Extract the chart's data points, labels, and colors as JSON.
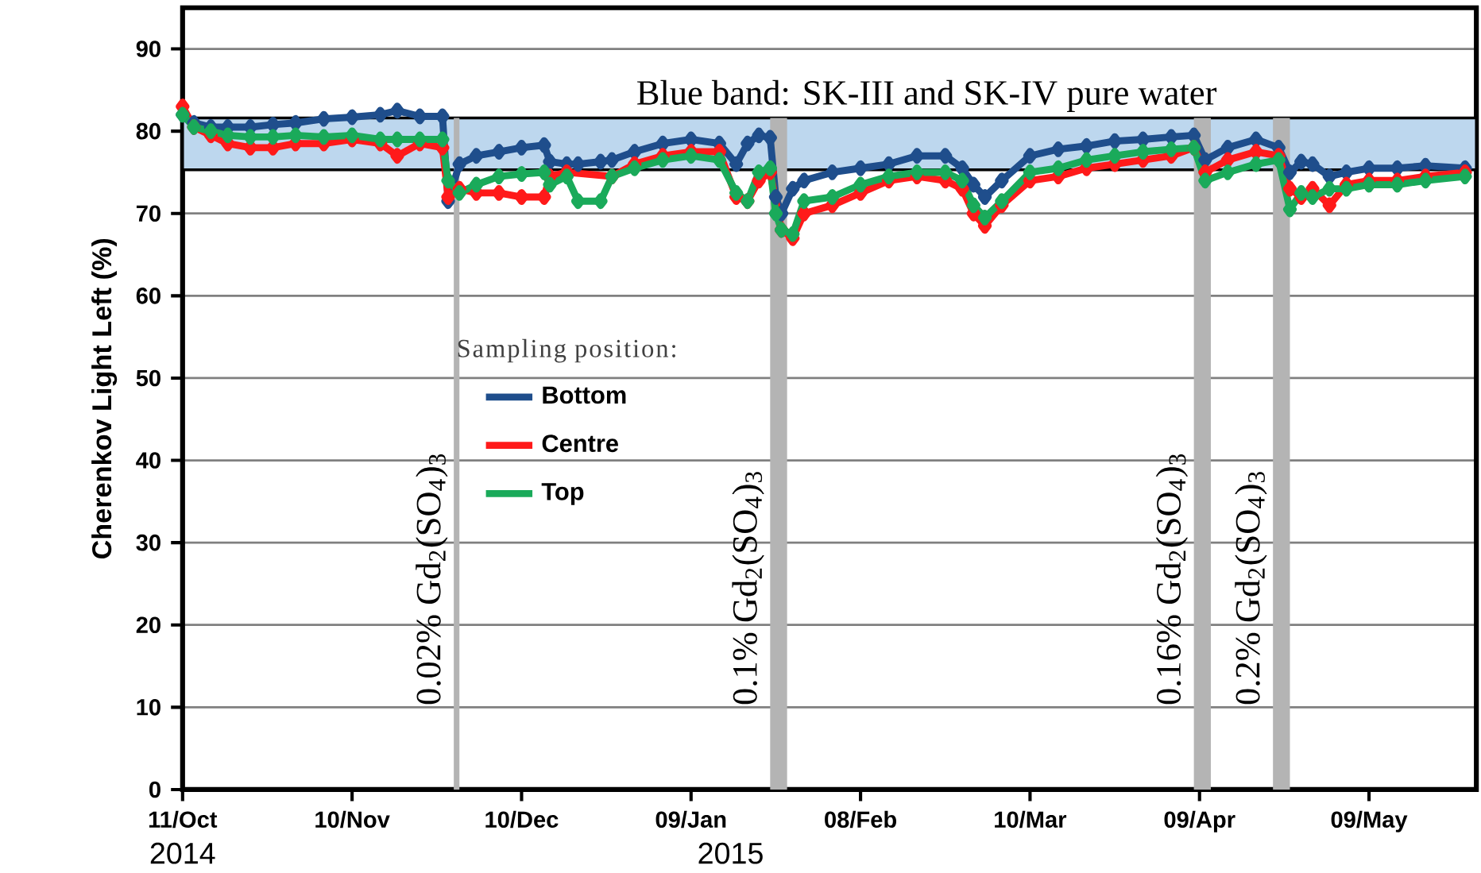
{
  "chart_data": {
    "type": "line",
    "ylabel": "Cherenkov Light Left (%)",
    "legend_title": "Sampling position:",
    "xlim": [
      "2014-10-11",
      "2015-05-28"
    ],
    "ylim": [
      0,
      95
    ],
    "xticks": [
      {
        "value": "2014-10-11",
        "label": "11/Oct"
      },
      {
        "value": "2014-11-10",
        "label": "10/Nov"
      },
      {
        "value": "2014-12-10",
        "label": "10/Dec"
      },
      {
        "value": "2015-01-09",
        "label": "09/Jan"
      },
      {
        "value": "2015-02-08",
        "label": "08/Feb"
      },
      {
        "value": "2015-03-10",
        "label": "10/Mar"
      },
      {
        "value": "2015-04-09",
        "label": "09/Apr"
      },
      {
        "value": "2015-05-09",
        "label": "09/May"
      }
    ],
    "yticks": [
      0,
      10,
      20,
      30,
      40,
      50,
      60,
      70,
      80,
      90
    ],
    "grid": "y",
    "legend": "center",
    "marker": "diamond",
    "line_style": "solid",
    "annotations": [
      "2014",
      "2015"
    ],
    "bands": [
      {
        "axis": "y",
        "from": 75.3,
        "to": 81.6,
        "label": "Blue band: SK-III and SK-IV pure water",
        "color": "#bdd7ee"
      },
      {
        "axis": "x",
        "from": "2014-11-28",
        "to": "2014-11-29",
        "label": "0.02% Gd$_{2}$(SO$_{4}$)$_{3}$",
        "color": "#b4b4b4"
      },
      {
        "axis": "x",
        "from": "2015-01-23",
        "to": "2015-01-26",
        "label": "0.1% Gd$_{2}$(SO$_{4}$)$_{3}$",
        "color": "#b4b4b4"
      },
      {
        "axis": "x",
        "from": "2015-04-08",
        "to": "2015-04-11",
        "label": "0.16% Gd$_{2}$(SO$_{4}$)$_{3}$",
        "color": "#b4b4b4"
      },
      {
        "axis": "x",
        "from": "2015-04-22",
        "to": "2015-04-25",
        "label": "0.2% Gd$_{2}$(SO$_{4}$)$_{3}$",
        "color": "#b4b4b4"
      }
    ],
    "x": [
      "2014-10-11",
      "2014-10-13",
      "2014-10-16",
      "2014-10-19",
      "2014-10-23",
      "2014-10-27",
      "2014-10-31",
      "2014-11-05",
      "2014-11-10",
      "2014-11-15",
      "2014-11-18",
      "2014-11-22",
      "2014-11-26",
      "2014-11-27",
      "2014-11-29",
      "2014-12-02",
      "2014-12-06",
      "2014-12-10",
      "2014-12-14",
      "2014-12-15",
      "2014-12-18",
      "2014-12-20",
      "2014-12-24",
      "2014-12-26",
      "2014-12-30",
      "2015-01-04",
      "2015-01-09",
      "2015-01-14",
      "2015-01-17",
      "2015-01-19",
      "2015-01-21",
      "2015-01-23",
      "2015-01-24",
      "2015-01-25",
      "2015-01-27",
      "2015-01-29",
      "2015-02-03",
      "2015-02-08",
      "2015-02-13",
      "2015-02-18",
      "2015-02-23",
      "2015-02-26",
      "2015-02-28",
      "2015-03-02",
      "2015-03-05",
      "2015-03-10",
      "2015-03-15",
      "2015-03-20",
      "2015-03-25",
      "2015-03-30",
      "2015-04-04",
      "2015-04-08",
      "2015-04-10",
      "2015-04-14",
      "2015-04-19",
      "2015-04-23",
      "2015-04-25",
      "2015-04-27",
      "2015-04-29",
      "2015-05-02",
      "2015-05-05",
      "2015-05-09",
      "2015-05-14",
      "2015-05-19",
      "2015-05-26"
    ],
    "series": [
      {
        "name": "Bottom",
        "color": "#1f4e8c",
        "values": [
          82,
          81,
          80.5,
          80.5,
          80.5,
          80.8,
          81,
          81.5,
          81.7,
          82,
          82.5,
          81.8,
          81.8,
          71.5,
          76,
          77,
          77.5,
          78,
          78.3,
          76.3,
          76,
          76,
          76.3,
          76.5,
          77.5,
          78.5,
          79,
          78.5,
          76,
          78.5,
          79.5,
          79.2,
          72,
          70,
          73,
          74,
          75,
          75.5,
          76,
          77,
          77,
          75.5,
          73.5,
          72,
          74,
          77,
          77.8,
          78.2,
          78.8,
          79,
          79.3,
          79.5,
          76.5,
          78,
          79,
          78,
          75,
          76.3,
          76,
          74.5,
          75,
          75.5,
          75.5,
          75.8,
          75.5
        ]
      },
      {
        "name": "Centre",
        "color": "#ff1a1a",
        "values": [
          83,
          80.5,
          79.5,
          78.5,
          78,
          78,
          78.5,
          78.5,
          79,
          78.5,
          77,
          78.5,
          78,
          72,
          73,
          72.5,
          72.5,
          72,
          72,
          74.5,
          75,
          null,
          null,
          74.5,
          76,
          77,
          77.5,
          77.5,
          72,
          71.5,
          74,
          75,
          null,
          68,
          67,
          70,
          71,
          72.5,
          74,
          74.5,
          74,
          73,
          70,
          68.5,
          71,
          74,
          74.5,
          75.5,
          76,
          76.5,
          77,
          78,
          75,
          76.5,
          77.5,
          77,
          73,
          72,
          73,
          71,
          73.5,
          74,
          74,
          74.5,
          75
        ]
      },
      {
        "name": "Top",
        "color": "#1aaa5a",
        "values": [
          82,
          80.5,
          80,
          79.5,
          79.3,
          79.3,
          79.5,
          79.3,
          79.5,
          79,
          79,
          79,
          79,
          74,
          72.5,
          73.5,
          74.5,
          74.8,
          75,
          73.5,
          74.5,
          71.5,
          71.5,
          74.5,
          75.5,
          76.5,
          77,
          76.5,
          72.5,
          71.5,
          75,
          75.5,
          70,
          68,
          67.5,
          71.5,
          72,
          73.5,
          74.5,
          75,
          75,
          74,
          71,
          69.5,
          71.5,
          75,
          75.5,
          76.5,
          77,
          77.5,
          77.8,
          78,
          74,
          75,
          76,
          76.5,
          70.5,
          72.5,
          72,
          73,
          73,
          73.5,
          73.5,
          74,
          74.5
        ]
      }
    ]
  }
}
